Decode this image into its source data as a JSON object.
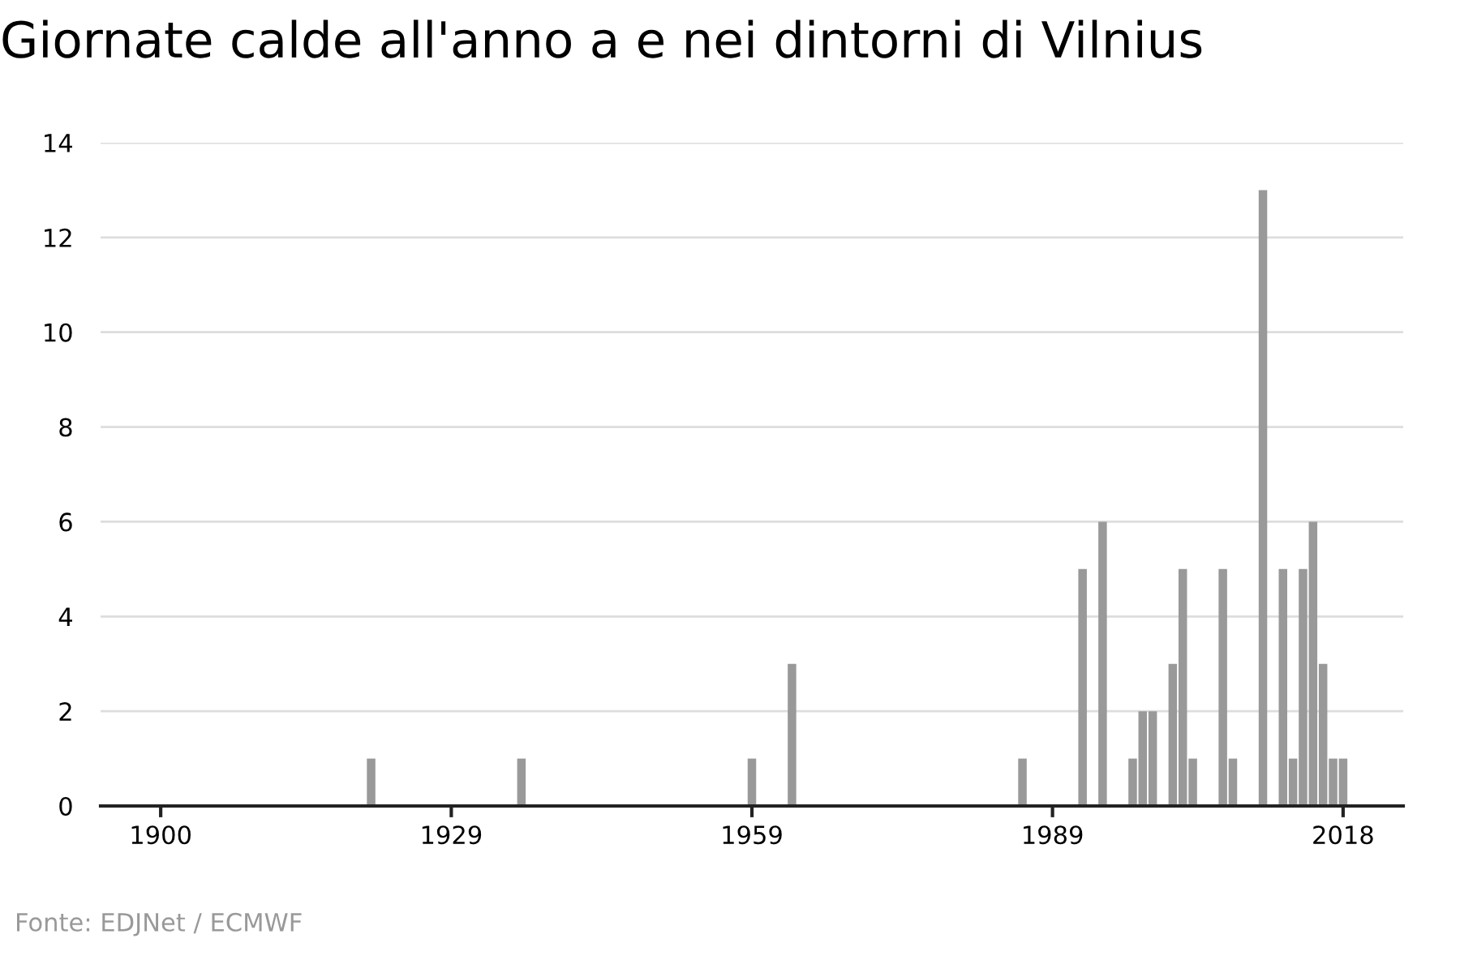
{
  "chart_data": {
    "type": "bar",
    "title": "Giornate calde all'anno a e nei dintorni di Vilnius",
    "x": [
      1921,
      1936,
      1959,
      1963,
      1986,
      1992,
      1994,
      1997,
      1998,
      1999,
      2001,
      2002,
      2003,
      2006,
      2007,
      2010,
      2012,
      2013,
      2014,
      2015,
      2016,
      2017,
      2018
    ],
    "values": [
      1,
      1,
      1,
      3,
      1,
      5,
      6,
      1,
      2,
      2,
      3,
      5,
      1,
      5,
      1,
      13,
      5,
      1,
      5,
      6,
      3,
      1,
      1
    ],
    "color": "#999999",
    "xlim": [
      1894,
      2024
    ],
    "xticks": [
      1900,
      1929,
      1959,
      1989,
      2018
    ],
    "ylim": [
      0,
      14
    ],
    "yticks": [
      0,
      2,
      4,
      6,
      8,
      10,
      12,
      14
    ],
    "grid": "y",
    "annotations": [
      "Fonte: EDJNet / ECMWF"
    ]
  }
}
